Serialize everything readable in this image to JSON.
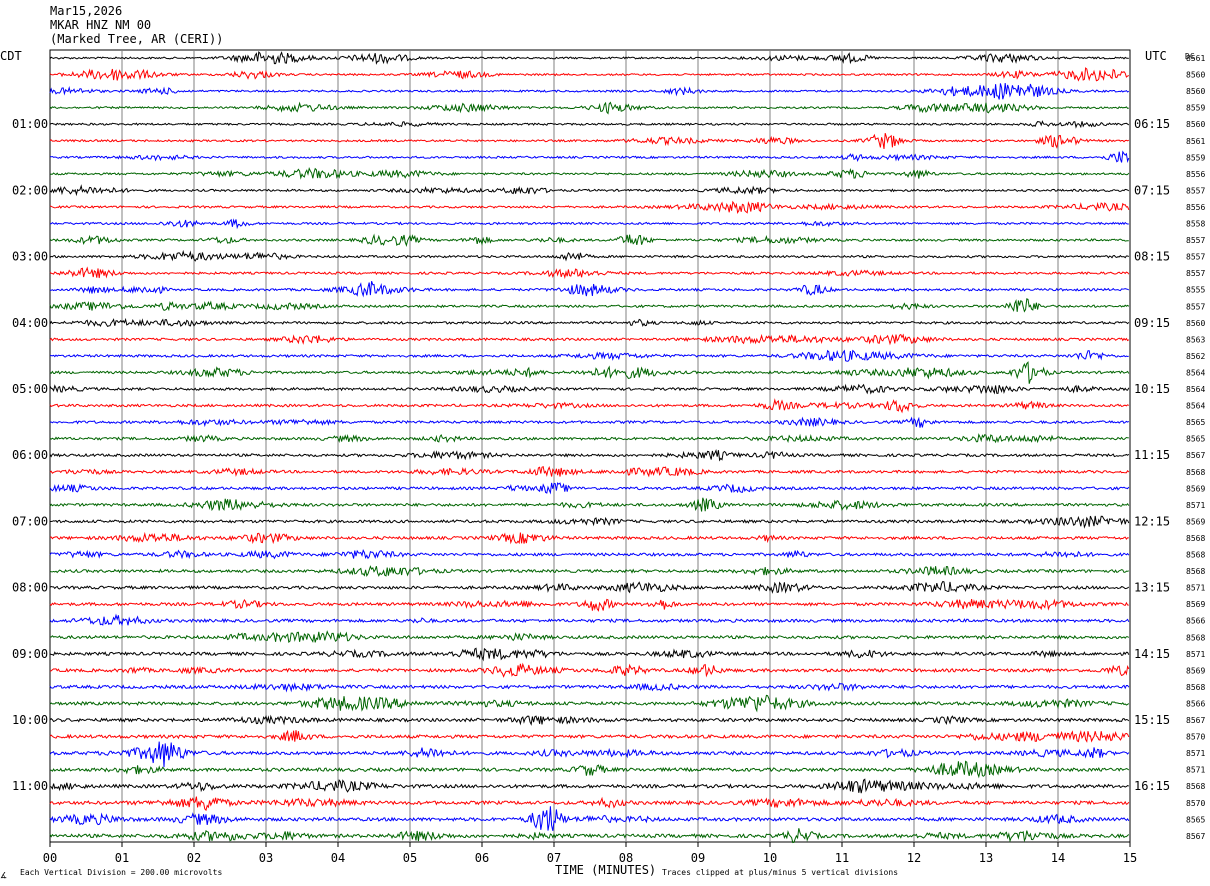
{
  "header": {
    "date": "Mar15,2026",
    "station": "MKAR HNZ NM 00",
    "location": "(Marked Tree, AR (CERI))"
  },
  "left_tz": "CDT",
  "right_tz": "UTC",
  "dc_label": "DC",
  "footer": {
    "scale": "Each Vertical Division =  200.00 microvolts",
    "clip": "Traces clipped at plus/minus 5 vertical divisions",
    "corner": "∡"
  },
  "chart_data": {
    "type": "line",
    "title": "MKAR HNZ NM 00",
    "xlabel": "TIME (MINUTES)",
    "xlim": [
      0,
      15
    ],
    "x_ticks": [
      "00",
      "01",
      "02",
      "03",
      "04",
      "05",
      "06",
      "07",
      "08",
      "09",
      "10",
      "11",
      "12",
      "13",
      "14",
      "15"
    ],
    "trace_count": 48,
    "trace_colors": [
      "#000000",
      "#ff0000",
      "#0000ff",
      "#006400"
    ],
    "left_hour_labels": [
      "01:00",
      "02:00",
      "03:00",
      "04:00",
      "05:00",
      "06:00",
      "07:00",
      "08:00",
      "09:00",
      "10:00",
      "11:00"
    ],
    "right_hour_labels": [
      "06:15",
      "07:15",
      "08:15",
      "09:15",
      "10:15",
      "11:15",
      "12:15",
      "13:15",
      "14:15",
      "15:15",
      "16:15"
    ],
    "dc_offsets": [
      "8561",
      "8560",
      "8560",
      "8559",
      "8560",
      "8561",
      "8559",
      "8556",
      "8557",
      "8556",
      "8558",
      "8557",
      "8557",
      "8557",
      "8555",
      "8557",
      "8560",
      "8563",
      "8562",
      "8564",
      "8564",
      "8564",
      "8565",
      "8565",
      "8567",
      "8568",
      "8569",
      "8571",
      "8569",
      "8568",
      "8568",
      "8568",
      "8571",
      "8569",
      "8566",
      "8568",
      "8571",
      "8569",
      "8568",
      "8566",
      "8567",
      "8570",
      "8571",
      "8571",
      "8568",
      "8570",
      "8565",
      "8567"
    ],
    "events": [
      {
        "trace": 19,
        "minute": 13.6,
        "amp": 10
      },
      {
        "trace": 15,
        "minute": 13.5,
        "amp": 8
      },
      {
        "trace": 46,
        "minute": 6.9,
        "amp": 14
      },
      {
        "trace": 42,
        "minute": 1.6,
        "amp": 9
      },
      {
        "trace": 11,
        "minute": 8.1,
        "amp": 6
      },
      {
        "trace": 14,
        "minute": 10.6,
        "amp": 5
      },
      {
        "trace": 6,
        "minute": 14.9,
        "amp": 6
      },
      {
        "trace": 21,
        "minute": 11.8,
        "amp": 6
      },
      {
        "trace": 27,
        "minute": 9.1,
        "amp": 6
      },
      {
        "trace": 26,
        "minute": 7.0,
        "amp": 5
      },
      {
        "trace": 33,
        "minute": 7.6,
        "amp": 6
      },
      {
        "trace": 37,
        "minute": 9.1,
        "amp": 5
      },
      {
        "trace": 41,
        "minute": 3.4,
        "amp": 5
      },
      {
        "trace": 43,
        "minute": 7.5,
        "amp": 5
      },
      {
        "trace": 47,
        "minute": 10.4,
        "amp": 6
      },
      {
        "trace": 45,
        "minute": 2.2,
        "amp": 5
      }
    ]
  }
}
